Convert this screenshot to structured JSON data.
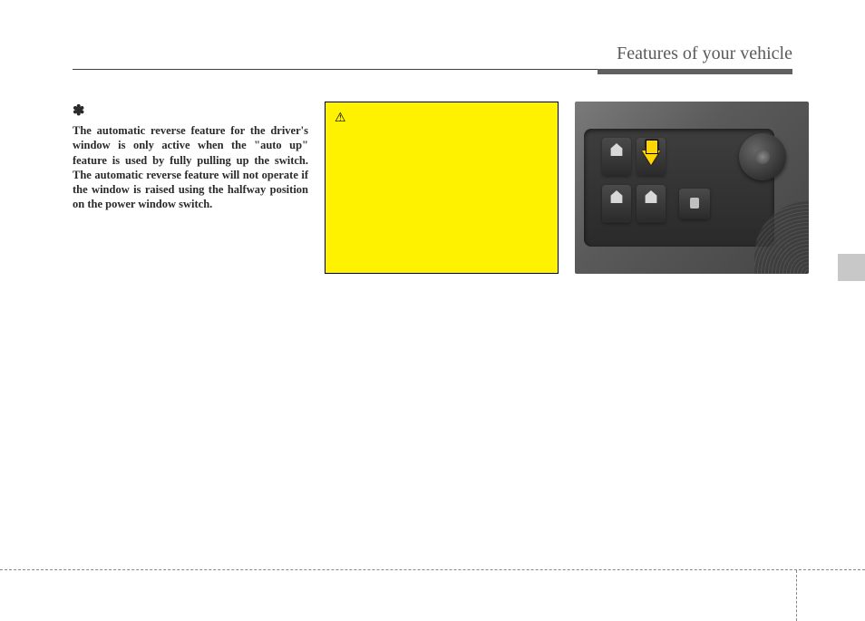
{
  "header": {
    "title": "Features of your vehicle"
  },
  "notice": {
    "star": "✽",
    "text": "The automatic reverse feature for the driver's window is only active when the \"auto up\" feature is used by fully pulling up the switch. The automatic reverse feature will not operate if the window is raised using the halfway position on the power window switch."
  },
  "caution": {
    "icon": "⚠"
  },
  "colors": {
    "caution_bg": "#fff200",
    "header_text": "#5a5a5a",
    "body_text": "#2a2a2a",
    "arrow": "#ffd400"
  }
}
